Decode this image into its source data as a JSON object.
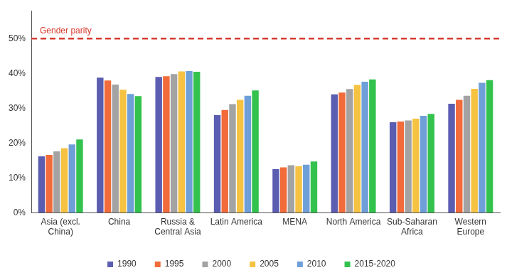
{
  "chart_data": {
    "type": "bar",
    "categories": [
      "Asia (excl. China)",
      "China",
      "Russia & Central Asia",
      "Latin America",
      "MENA",
      "North America",
      "Sub-Saharan Africa",
      "Western Europe"
    ],
    "series": [
      {
        "name": "1990",
        "color": "#5a5db0",
        "values": [
          16.2,
          38.8,
          39.0,
          28.0,
          12.5,
          34.0,
          26.0,
          31.3
        ]
      },
      {
        "name": "1995",
        "color": "#f26b3a",
        "values": [
          16.6,
          38.0,
          39.2,
          29.5,
          13.0,
          34.5,
          26.2,
          32.4
        ]
      },
      {
        "name": "2000",
        "color": "#a3a3a3",
        "values": [
          17.6,
          36.8,
          39.8,
          31.2,
          13.6,
          35.5,
          26.5,
          33.6
        ]
      },
      {
        "name": "2005",
        "color": "#f5c242",
        "values": [
          18.5,
          35.3,
          40.6,
          32.4,
          13.3,
          36.7,
          27.0,
          35.6
        ]
      },
      {
        "name": "2010",
        "color": "#6e9fd8",
        "values": [
          19.6,
          34.1,
          40.7,
          33.6,
          13.8,
          37.6,
          27.8,
          37.3
        ]
      },
      {
        "name": "2015-2020",
        "color": "#33c24d",
        "values": [
          21.0,
          33.5,
          40.5,
          35.1,
          14.7,
          38.3,
          28.4,
          38.1
        ]
      }
    ],
    "ylim": [
      0,
      58
    ],
    "yticks": [
      {
        "value": 0,
        "label": "0%"
      },
      {
        "value": 10,
        "label": "10%"
      },
      {
        "value": 20,
        "label": "20%"
      },
      {
        "value": 30,
        "label": "30%"
      },
      {
        "value": 40,
        "label": "40%"
      },
      {
        "value": 50,
        "label": "50%"
      }
    ],
    "annotations": [
      {
        "text": "Gender parity",
        "y": 50,
        "color": "#d63a2f",
        "line_style": "dashed"
      }
    ],
    "grid": false,
    "legend": "bottom"
  }
}
